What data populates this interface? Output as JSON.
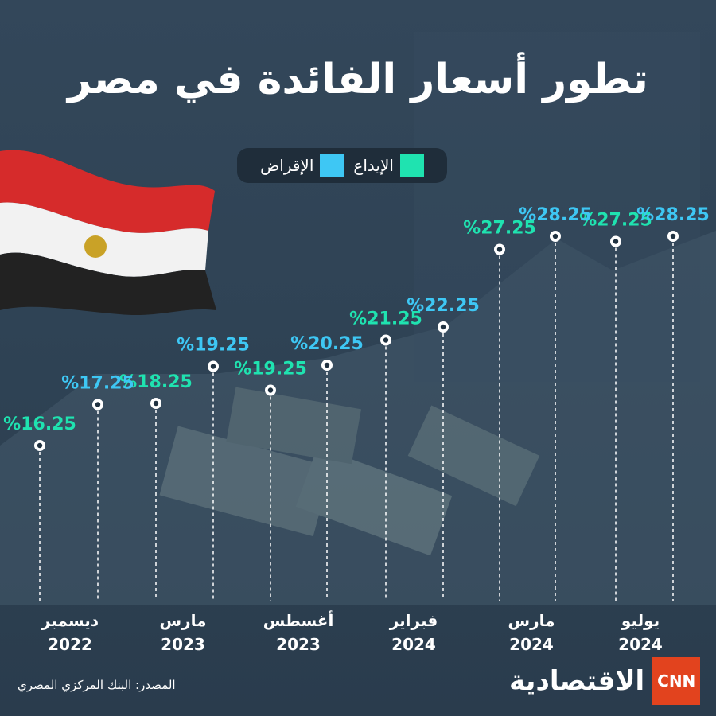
{
  "title": "تطور أسعار الفائدة في مصر",
  "legend": [
    {
      "label": "الإقراض",
      "color": "#3ec7f4"
    },
    {
      "label": "الإيداع",
      "color": "#1fe3b0"
    }
  ],
  "chart_data": {
    "type": "line",
    "categories": [
      {
        "month": "ديسمبر",
        "year": "2022"
      },
      {
        "month": "مارس",
        "year": "2023"
      },
      {
        "month": "أغسطس",
        "year": "2023"
      },
      {
        "month": "فبراير",
        "year": "2024"
      },
      {
        "month": "مارس",
        "year": "2024"
      },
      {
        "month": "يوليو",
        "year": "2024"
      }
    ],
    "series": [
      {
        "name": "الإيداع",
        "color": "#1fe3b0",
        "values": [
          16.25,
          18.25,
          19.25,
          21.25,
          27.25,
          27.25
        ]
      },
      {
        "name": "الإقراض",
        "color": "#3ec7f4",
        "values": [
          17.25,
          19.25,
          20.25,
          22.25,
          28.25,
          28.25
        ]
      }
    ],
    "value_format": "%{v}",
    "grid": false
  },
  "source": "المصدر: البنك المركزي المصري",
  "logo": {
    "brand": "CNN",
    "name": "الاقتصادية"
  }
}
